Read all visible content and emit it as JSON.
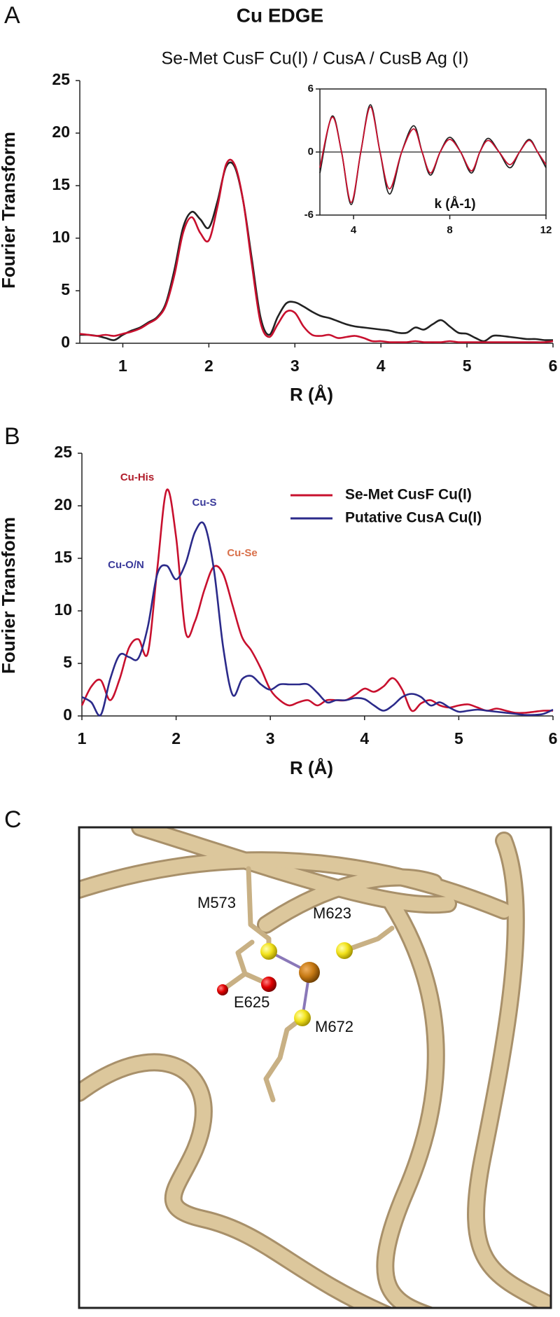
{
  "chart_data": [
    {
      "type": "line",
      "panel_label": "A",
      "title": "Cu EDGE",
      "subtitle": "Se-Met CusF Cu(I) / CusA / CusB Ag (I)",
      "xlabel": "R (Å)",
      "ylabel": "Fourier Transform",
      "x": [
        0.5,
        0.6,
        0.7,
        0.8,
        0.9,
        1.0,
        1.1,
        1.2,
        1.3,
        1.4,
        1.5,
        1.6,
        1.7,
        1.8,
        1.9,
        2.0,
        2.1,
        2.2,
        2.3,
        2.4,
        2.5,
        2.6,
        2.7,
        2.8,
        2.9,
        3.0,
        3.1,
        3.2,
        3.3,
        3.4,
        3.5,
        3.6,
        3.7,
        3.8,
        3.9,
        4.0,
        4.1,
        4.2,
        4.3,
        4.4,
        4.5,
        4.6,
        4.7,
        4.8,
        4.9,
        5.0,
        5.1,
        5.2,
        5.3,
        5.4,
        5.5,
        5.6,
        5.7,
        5.8,
        5.9,
        6.0
      ],
      "series": [
        {
          "color": "#222222",
          "values": [
            0.8,
            0.8,
            0.7,
            0.5,
            0.3,
            0.8,
            1.2,
            1.5,
            2.0,
            2.5,
            3.8,
            7.0,
            11.0,
            12.5,
            11.8,
            11.0,
            13.5,
            16.8,
            16.8,
            13.5,
            8.0,
            2.5,
            0.8,
            2.5,
            3.8,
            3.9,
            3.5,
            3.0,
            2.6,
            2.4,
            2.1,
            1.8,
            1.6,
            1.5,
            1.4,
            1.3,
            1.2,
            1.0,
            1.0,
            1.5,
            1.3,
            1.8,
            2.2,
            1.6,
            1.0,
            0.9,
            0.5,
            0.2,
            0.7,
            0.7,
            0.6,
            0.5,
            0.4,
            0.4,
            0.3,
            0.3
          ]
        },
        {
          "color": "#c8102e",
          "values": [
            0.9,
            0.8,
            0.7,
            0.8,
            0.7,
            0.9,
            1.1,
            1.4,
            1.9,
            2.4,
            3.6,
            6.5,
            10.5,
            12.0,
            10.5,
            9.8,
            13.0,
            17.0,
            17.0,
            13.5,
            7.5,
            2.0,
            0.6,
            1.8,
            3.0,
            2.9,
            1.6,
            0.8,
            0.7,
            0.8,
            0.5,
            0.6,
            0.7,
            0.5,
            0.2,
            0.2,
            0.1,
            0.1,
            0.1,
            0.2,
            0.1,
            0.1,
            0.1,
            0.2,
            0.1,
            0.1,
            0.1,
            0.1,
            0.1,
            0.1,
            0.1,
            0.1,
            0.1,
            0.1,
            0.1,
            0.2
          ]
        }
      ],
      "xlim": [
        0.5,
        6
      ],
      "ylim": [
        0,
        25
      ],
      "xticks": [
        1,
        2,
        3,
        4,
        5,
        6
      ],
      "yticks": [
        0,
        5,
        10,
        15,
        20,
        25
      ],
      "inset": {
        "type": "line",
        "xlabel": "k (Å-1)",
        "x": [
          2.6,
          3.1,
          3.5,
          3.9,
          4.3,
          4.7,
          5.1,
          5.5,
          6.0,
          6.5,
          6.85,
          7.2,
          7.6,
          8.0,
          8.45,
          8.9,
          9.25,
          9.6,
          10.05,
          10.5,
          10.9,
          11.3,
          11.65,
          12
        ],
        "series": [
          {
            "color": "#222222",
            "values": [
              -2,
              3.4,
              0,
              -5,
              0,
              4.5,
              0,
              -4,
              0,
              2.5,
              0,
              -2.2,
              0,
              1.4,
              0,
              -2,
              0,
              1.3,
              0,
              -1.5,
              0,
              1.2,
              0,
              -1.5
            ]
          },
          {
            "color": "#c8102e",
            "values": [
              -1.5,
              3.3,
              0,
              -4.8,
              0,
              4.3,
              0,
              -3.5,
              0,
              2.2,
              0,
              -2.0,
              0,
              1.2,
              0,
              -1.8,
              0,
              1.1,
              0,
              -1.2,
              0,
              1.1,
              0,
              -1.2
            ]
          }
        ],
        "xlim": [
          2.6,
          12
        ],
        "ylim": [
          -6,
          6
        ],
        "xticks": [
          4,
          8,
          12
        ],
        "yticks": [
          -6,
          0,
          6
        ]
      }
    },
    {
      "type": "line",
      "panel_label": "B",
      "xlabel": "R (Å)",
      "ylabel": "Fourier Transform",
      "x": [
        1.0,
        1.1,
        1.2,
        1.3,
        1.4,
        1.5,
        1.6,
        1.7,
        1.8,
        1.9,
        2.0,
        2.1,
        2.2,
        2.3,
        2.4,
        2.5,
        2.6,
        2.7,
        2.8,
        2.9,
        3.0,
        3.1,
        3.2,
        3.3,
        3.4,
        3.5,
        3.6,
        3.7,
        3.8,
        3.9,
        4.0,
        4.1,
        4.2,
        4.3,
        4.4,
        4.5,
        4.6,
        4.7,
        4.8,
        4.9,
        5.0,
        5.1,
        5.2,
        5.3,
        5.4,
        5.5,
        5.6,
        5.7,
        5.8,
        5.9,
        6.0
      ],
      "series": [
        {
          "name": "Se-Met CusF Cu(I)",
          "color": "#c8102e",
          "values": [
            1.0,
            2.8,
            3.4,
            1.5,
            3.5,
            6.5,
            7.3,
            6.0,
            14,
            21.5,
            17,
            8,
            9,
            12,
            14.2,
            13.5,
            10.5,
            7.5,
            6.2,
            4.5,
            2.5,
            1.5,
            1.0,
            1.3,
            1.5,
            1.0,
            1.5,
            1.5,
            1.5,
            2.0,
            2.6,
            2.3,
            2.8,
            3.6,
            2.5,
            0.5,
            1.2,
            1.5,
            1.0,
            0.8,
            1.0,
            1.1,
            0.8,
            0.5,
            0.7,
            0.5,
            0.3,
            0.3,
            0.4,
            0.5,
            0.5
          ]
        },
        {
          "name": "Putative CusA Cu(I)",
          "color": "#2b2a8a",
          "values": [
            1.8,
            1.3,
            0.1,
            3.5,
            5.8,
            5.6,
            5.5,
            8.5,
            13.5,
            14.3,
            13,
            14.5,
            17.5,
            18.2,
            14,
            6.5,
            2.0,
            3.5,
            3.8,
            3.0,
            2.5,
            3.0,
            3.0,
            3.0,
            3.0,
            2.2,
            1.3,
            1.5,
            1.5,
            1.7,
            1.6,
            1.0,
            0.5,
            1.0,
            1.8,
            2.1,
            1.8,
            1.0,
            1.3,
            0.8,
            0.4,
            0.5,
            0.6,
            0.5,
            0.4,
            0.3,
            0.2,
            0.1,
            0.1,
            0.2,
            0.6
          ]
        }
      ],
      "annotations": [
        {
          "text": "Cu-His",
          "color": "#b01c2a"
        },
        {
          "text": "Cu-S",
          "color": "#3a3a9a"
        },
        {
          "text": "Cu-O/N",
          "color": "#3a3a9a"
        },
        {
          "text": "Cu-Se",
          "color": "#d9704a"
        }
      ],
      "xlim": [
        1,
        6
      ],
      "ylim": [
        0,
        25
      ],
      "xticks": [
        1,
        2,
        3,
        4,
        5,
        6
      ],
      "yticks": [
        0,
        5,
        10,
        15,
        20,
        25
      ]
    }
  ],
  "panel_c": {
    "panel_label": "C",
    "residues": [
      "M573",
      "M623",
      "E625",
      "M672"
    ]
  }
}
